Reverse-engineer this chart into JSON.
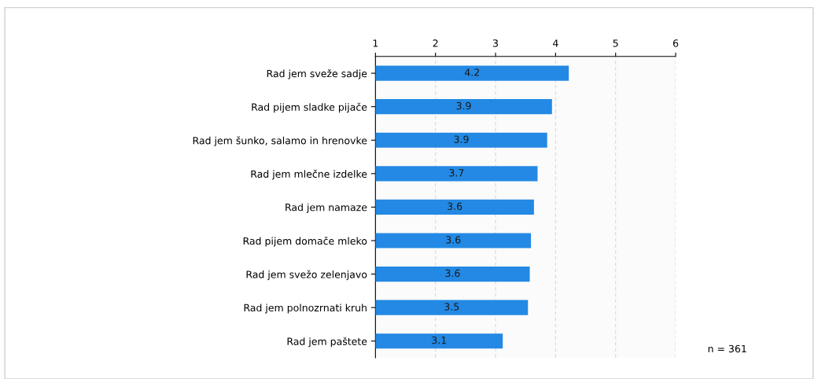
{
  "chart_data": {
    "type": "bar",
    "orientation": "horizontal",
    "categories": [
      "Rad jem sveže sadje",
      "Rad pijem sladke pijače",
      "Rad jem šunko, salamo in hrenovke",
      "Rad jem mlečne izdelke",
      "Rad jem namaze",
      "Rad pijem domače mleko",
      "Rad jem svežo zelenjavo",
      "Rad jem polnozrnati kruh",
      "Rad jem paštete"
    ],
    "values": [
      4.22,
      3.94,
      3.86,
      3.7,
      3.64,
      3.59,
      3.57,
      3.54,
      3.12
    ],
    "value_labels": [
      "4.2",
      "3.9",
      "3.9",
      "3.7",
      "3.6",
      "3.6",
      "3.6",
      "3.5",
      "3.1"
    ],
    "color": "#2389e4",
    "xlim": [
      1,
      6
    ],
    "xticks": [
      1,
      2,
      3,
      4,
      5,
      6
    ],
    "grid": "x",
    "annotations": [
      "n = 361"
    ]
  }
}
